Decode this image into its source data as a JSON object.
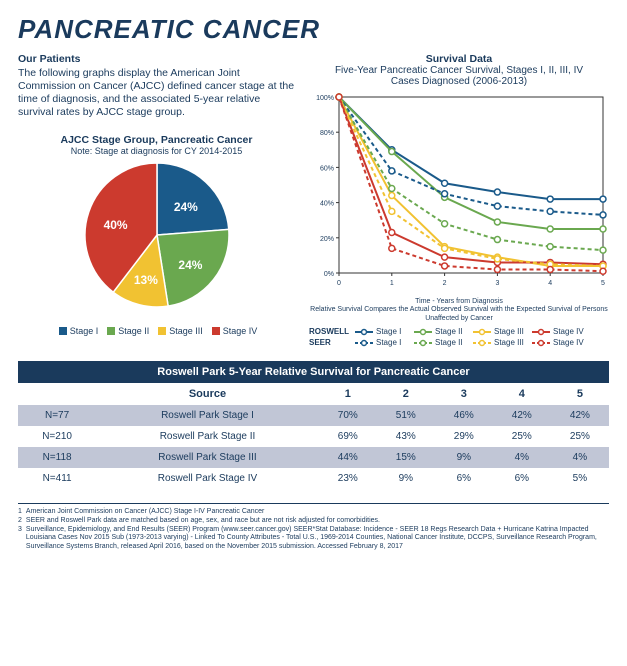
{
  "title": "PANCREATIC CANCER",
  "intro": {
    "heading": "Our Patients",
    "body": "The following graphs display the American Joint Commission on Cancer (AJCC) defined cancer stage at the time of diagnosis, and the associated 5-year relative survival rates by AJCC stage group."
  },
  "pie": {
    "title": "AJCC Stage Group, Pancreatic Cancer",
    "note": "Note: Stage at diagnosis for CY 2014-2015",
    "slices": [
      {
        "label": "Stage I",
        "value": 24,
        "color": "#1a5a8a"
      },
      {
        "label": "Stage II",
        "value": 24,
        "color": "#6aa84f"
      },
      {
        "label": "Stage III",
        "value": 13,
        "color": "#f1c232"
      },
      {
        "label": "Stage IV",
        "value": 40,
        "color": "#cc3a2e"
      }
    ]
  },
  "line": {
    "title": "Survival Data",
    "subtitle1": "Five-Year Pancreatic Cancer Survival, Stages I, II, III, IV",
    "subtitle2": "Cases Diagnosed  (2006-2013)",
    "xlabel": "Time - Years from Diagnosis",
    "xcaption": "Relative Survival Compares the Actual Observed Survival with the Expected Survival of Persons Unaffected by Cancer",
    "xlim": [
      0,
      5
    ],
    "ylim": [
      0,
      100
    ],
    "xticks": [
      0,
      1,
      2,
      3,
      4,
      5
    ],
    "yticks": [
      0,
      20,
      40,
      60,
      80,
      100
    ],
    "sources": [
      {
        "name": "ROSWELL",
        "style": "solid"
      },
      {
        "name": "SEER",
        "style": "dashed"
      }
    ],
    "series": [
      {
        "src": "ROSWELL",
        "stage": "Stage I",
        "color": "#1a5a8a",
        "dash": false,
        "y": [
          100,
          70,
          51,
          46,
          42,
          42
        ]
      },
      {
        "src": "ROSWELL",
        "stage": "Stage II",
        "color": "#6aa84f",
        "dash": false,
        "y": [
          100,
          69,
          43,
          29,
          25,
          25
        ]
      },
      {
        "src": "ROSWELL",
        "stage": "Stage III",
        "color": "#f1c232",
        "dash": false,
        "y": [
          100,
          44,
          15,
          9,
          4,
          4
        ]
      },
      {
        "src": "ROSWELL",
        "stage": "Stage IV",
        "color": "#cc3a2e",
        "dash": false,
        "y": [
          100,
          23,
          9,
          6,
          6,
          5
        ]
      },
      {
        "src": "SEER",
        "stage": "Stage I",
        "color": "#1a5a8a",
        "dash": true,
        "y": [
          100,
          58,
          45,
          38,
          35,
          33
        ]
      },
      {
        "src": "SEER",
        "stage": "Stage II",
        "color": "#6aa84f",
        "dash": true,
        "y": [
          100,
          48,
          28,
          19,
          15,
          13
        ]
      },
      {
        "src": "SEER",
        "stage": "Stage III",
        "color": "#f1c232",
        "dash": true,
        "y": [
          100,
          35,
          14,
          8,
          5,
          4
        ]
      },
      {
        "src": "SEER",
        "stage": "Stage IV",
        "color": "#cc3a2e",
        "dash": true,
        "y": [
          100,
          14,
          4,
          2,
          2,
          1
        ]
      }
    ],
    "marker_radius": 3,
    "line_width": 2,
    "grid_color": "#999",
    "axis_color": "#333",
    "bg": "#ffffff"
  },
  "table": {
    "title": "Roswell Park 5-Year Relative Survival for Pancreatic Cancer",
    "columns": [
      "",
      "Source",
      "1",
      "2",
      "3",
      "4",
      "5"
    ],
    "rows": [
      [
        "N=77",
        "Roswell Park Stage I",
        "70%",
        "51%",
        "46%",
        "42%",
        "42%"
      ],
      [
        "N=210",
        "Roswell Park Stage II",
        "69%",
        "43%",
        "29%",
        "25%",
        "25%"
      ],
      [
        "N=118",
        "Roswell Park Stage III",
        "44%",
        "15%",
        "9%",
        "4%",
        "4%"
      ],
      [
        "N=411",
        "Roswell Park Stage IV",
        "23%",
        "9%",
        "6%",
        "6%",
        "5%"
      ]
    ]
  },
  "footnotes": [
    "American Joint Commission on Cancer (AJCC) Stage I-IV Pancreatic Cancer",
    "SEER and Roswell Park data are matched based on age, sex, and race but are not risk adjusted for comorbidities.",
    "Surveillance, Epidemiology, and End Results (SEER) Program (www.seer.cancer.gov) SEER*Stat Database: Incidence - SEER 18 Regs Research Data + Hurricane Katrina Impacted Louisiana Cases Nov 2015 Sub (1973-2013 varying) - Linked To County Attributes - Total U.S., 1969-2014 Counties, National Cancer Institute, DCCPS, Surveillance Research Program, Surveillance Systems Branch, released April 2016, based on the November 2015 submission. Accessed  February 8, 2017"
  ]
}
